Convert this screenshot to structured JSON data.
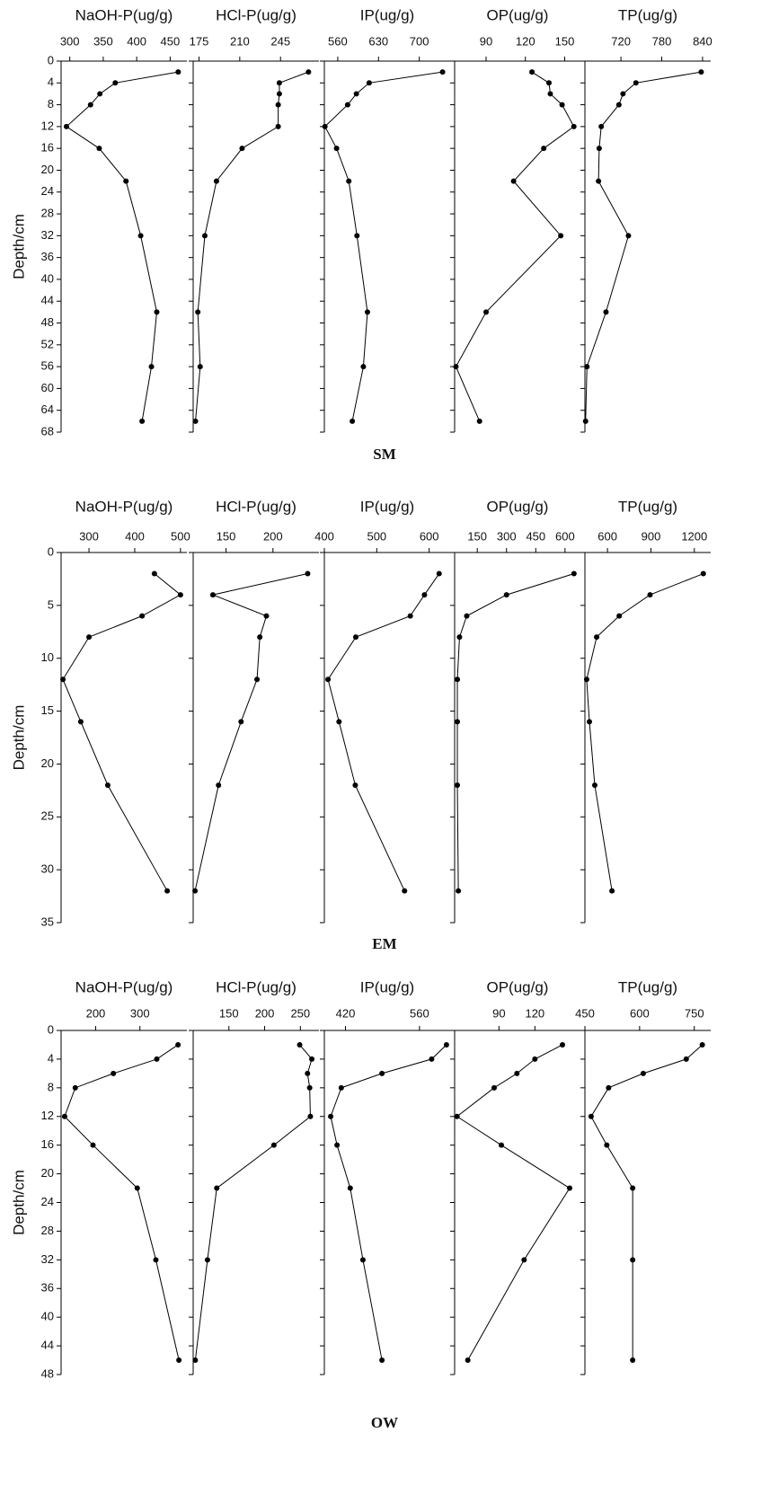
{
  "panel_labels": [
    "SM",
    "EM",
    "OW"
  ],
  "chart_data": [
    {
      "type": "line",
      "title": "NaOH-P(ug/g)",
      "ylabel": "Depth/cm",
      "xlim": [
        287,
        475
      ],
      "xticks": [
        300,
        350,
        400,
        450
      ],
      "ylim": [
        0,
        68
      ],
      "yticks": [
        0,
        4,
        8,
        12,
        16,
        20,
        24,
        28,
        32,
        36,
        40,
        44,
        48,
        52,
        56,
        60,
        64,
        68
      ],
      "y": [
        2,
        4,
        6,
        8,
        12,
        16,
        22,
        32,
        46,
        56,
        66
      ],
      "values": [
        462,
        368,
        345,
        331,
        295,
        344,
        384,
        406,
        430,
        422,
        408
      ],
      "color": "#000000"
    },
    {
      "type": "line",
      "title": "HCl-P(ug/g)",
      "xlim": [
        170,
        278
      ],
      "xticks": [
        175,
        210,
        245
      ],
      "ylim": [
        0,
        68
      ],
      "yticks": [
        0,
        4,
        8,
        12,
        16,
        20,
        24,
        28,
        32,
        36,
        40,
        44,
        48,
        52,
        56,
        60,
        64,
        68
      ],
      "y": [
        2,
        4,
        6,
        8,
        12,
        16,
        22,
        32,
        46,
        56,
        66
      ],
      "values": [
        269,
        244,
        244,
        243,
        243,
        212,
        190,
        180,
        174,
        176,
        172
      ],
      "color": "#000000"
    },
    {
      "type": "line",
      "title": "IP(ug/g)",
      "xlim": [
        537,
        753
      ],
      "xticks": [
        560,
        630,
        700
      ],
      "ylim": [
        0,
        68
      ],
      "yticks": [
        0,
        4,
        8,
        12,
        16,
        20,
        24,
        28,
        32,
        36,
        40,
        44,
        48,
        52,
        56,
        60,
        64,
        68
      ],
      "y": [
        2,
        4,
        6,
        8,
        12,
        16,
        22,
        32,
        46,
        56,
        66
      ],
      "values": [
        740,
        614,
        592,
        577,
        538,
        558,
        579,
        593,
        611,
        604,
        585
      ],
      "color": "#000000"
    },
    {
      "type": "line",
      "title": "OP(ug/g)",
      "xlim": [
        66,
        162
      ],
      "xticks": [
        90,
        120,
        150
      ],
      "ylim": [
        0,
        68
      ],
      "yticks": [
        0,
        4,
        8,
        12,
        16,
        20,
        24,
        28,
        32,
        36,
        40,
        44,
        48,
        52,
        56,
        60,
        64,
        68
      ],
      "y": [
        2,
        4,
        6,
        8,
        12,
        16,
        22,
        32,
        46,
        56,
        66
      ],
      "values": [
        125,
        138,
        139,
        148,
        157,
        134,
        111,
        147,
        90,
        67,
        85
      ],
      "color": "#000000"
    },
    {
      "type": "line",
      "title": "TP(ug/g)",
      "xlim": [
        667,
        852
      ],
      "xticks": [
        720,
        780,
        840
      ],
      "ylim": [
        0,
        68
      ],
      "yticks": [
        0,
        4,
        8,
        12,
        16,
        20,
        24,
        28,
        32,
        36,
        40,
        44,
        48,
        52,
        56,
        60,
        64,
        68
      ],
      "y": [
        2,
        4,
        6,
        8,
        12,
        16,
        22,
        32,
        46,
        56,
        66
      ],
      "values": [
        838,
        742,
        723,
        717,
        691,
        688,
        687,
        731,
        698,
        670,
        668
      ],
      "color": "#000000"
    },
    {
      "type": "line",
      "title": "NaOH-P(ug/g)",
      "ylabel": "Depth/cm",
      "xlim": [
        239,
        514
      ],
      "xticks": [
        300,
        400,
        500
      ],
      "ylim": [
        0,
        35
      ],
      "yticks": [
        0,
        5,
        10,
        15,
        20,
        25,
        30,
        35
      ],
      "y": [
        2,
        4,
        6,
        8,
        12,
        16,
        22,
        32
      ],
      "values": [
        443,
        500,
        416,
        300,
        243,
        282,
        341,
        471
      ],
      "color": "#000000"
    },
    {
      "type": "line",
      "title": "HCl-P(ug/g)",
      "xlim": [
        115,
        249
      ],
      "xticks": [
        150,
        200
      ],
      "ylim": [
        0,
        35
      ],
      "yticks": [
        0,
        5,
        10,
        15,
        20,
        25,
        30,
        35
      ],
      "y": [
        2,
        4,
        6,
        8,
        12,
        16,
        22,
        32
      ],
      "values": [
        237,
        136,
        193,
        186,
        183,
        166,
        142,
        117
      ],
      "color": "#000000"
    },
    {
      "type": "line",
      "title": "IP(ug/g)",
      "xlim": [
        400,
        640
      ],
      "xticks": [
        400,
        500,
        600
      ],
      "ylim": [
        0,
        35
      ],
      "yticks": [
        0,
        5,
        10,
        15,
        20,
        25,
        30,
        35
      ],
      "y": [
        2,
        4,
        6,
        8,
        12,
        16,
        22,
        32
      ],
      "values": [
        619,
        591,
        564,
        460,
        407,
        428,
        459,
        553
      ],
      "color": "#000000"
    },
    {
      "type": "line",
      "title": "OP(ug/g)",
      "xlim": [
        34,
        679
      ],
      "xticks": [
        150,
        300,
        450,
        600
      ],
      "ylim": [
        0,
        35
      ],
      "yticks": [
        0,
        5,
        10,
        15,
        20,
        25,
        30,
        35
      ],
      "y": [
        2,
        4,
        6,
        8,
        12,
        16,
        22,
        32
      ],
      "values": [
        646,
        300,
        96,
        59,
        48,
        48,
        48,
        53
      ],
      "color": "#000000"
    },
    {
      "type": "line",
      "title": "TP(ug/g)",
      "xlim": [
        444,
        1313
      ],
      "xticks": [
        600,
        900,
        1200
      ],
      "ylim": [
        0,
        35
      ],
      "yticks": [
        0,
        5,
        10,
        15,
        20,
        25,
        30,
        35
      ],
      "y": [
        2,
        4,
        6,
        8,
        12,
        16,
        22,
        32
      ],
      "values": [
        1262,
        894,
        681,
        525,
        456,
        475,
        512,
        631
      ],
      "color": "#000000"
    },
    {
      "type": "line",
      "title": "NaOH-P(ug/g)",
      "ylabel": "Depth/cm",
      "xlim": [
        122,
        406
      ],
      "xticks": [
        200,
        300
      ],
      "ylim": [
        0,
        48
      ],
      "yticks": [
        0,
        4,
        8,
        12,
        16,
        20,
        24,
        28,
        32,
        36,
        40,
        44,
        48
      ],
      "y": [
        2,
        4,
        6,
        8,
        12,
        16,
        22,
        32,
        46
      ],
      "values": [
        386,
        338,
        240,
        154,
        130,
        194,
        294,
        336,
        388
      ],
      "color": "#000000"
    },
    {
      "type": "line",
      "title": "HCl-P(ug/g)",
      "xlim": [
        100,
        276
      ],
      "xticks": [
        150,
        200,
        250
      ],
      "ylim": [
        0,
        48
      ],
      "yticks": [
        0,
        4,
        8,
        12,
        16,
        20,
        24,
        28,
        32,
        36,
        40,
        44,
        48
      ],
      "y": [
        2,
        4,
        6,
        8,
        12,
        16,
        22,
        32,
        46
      ],
      "values": [
        249,
        266,
        260,
        263,
        264,
        213,
        133,
        120,
        103
      ],
      "color": "#000000"
    },
    {
      "type": "line",
      "title": "IP(ug/g)",
      "xlim": [
        380,
        618
      ],
      "xticks": [
        420,
        560
      ],
      "ylim": [
        0,
        48
      ],
      "yticks": [
        0,
        4,
        8,
        12,
        16,
        20,
        24,
        28,
        32,
        36,
        40,
        44,
        48
      ],
      "y": [
        2,
        4,
        6,
        8,
        12,
        16,
        22,
        32,
        46
      ],
      "values": [
        611,
        583,
        489,
        412,
        392,
        404,
        429,
        453,
        489
      ],
      "color": "#000000"
    },
    {
      "type": "line",
      "title": "OP(ug/g)",
      "xlim": [
        53,
        158
      ],
      "xticks": [
        90,
        120
      ],
      "ylim": [
        0,
        48
      ],
      "yticks": [
        0,
        4,
        8,
        12,
        16,
        20,
        24,
        28,
        32,
        36,
        40,
        44,
        48
      ],
      "y": [
        2,
        4,
        6,
        8,
        12,
        16,
        22,
        32,
        46
      ],
      "values": [
        143,
        120,
        105,
        86,
        55,
        92,
        149,
        111,
        64
      ],
      "color": "#000000"
    },
    {
      "type": "line",
      "title": "TP(ug/g)",
      "xlim": [
        450,
        795
      ],
      "xticks": [
        450,
        600,
        750
      ],
      "ylim": [
        0,
        48
      ],
      "yticks": [
        0,
        4,
        8,
        12,
        16,
        20,
        24,
        28,
        32,
        36,
        40,
        44,
        48
      ],
      "y": [
        2,
        4,
        6,
        8,
        12,
        16,
        22,
        32,
        46
      ],
      "values": [
        772,
        728,
        610,
        515,
        467,
        510,
        581,
        581,
        581
      ],
      "color": "#000000"
    }
  ]
}
